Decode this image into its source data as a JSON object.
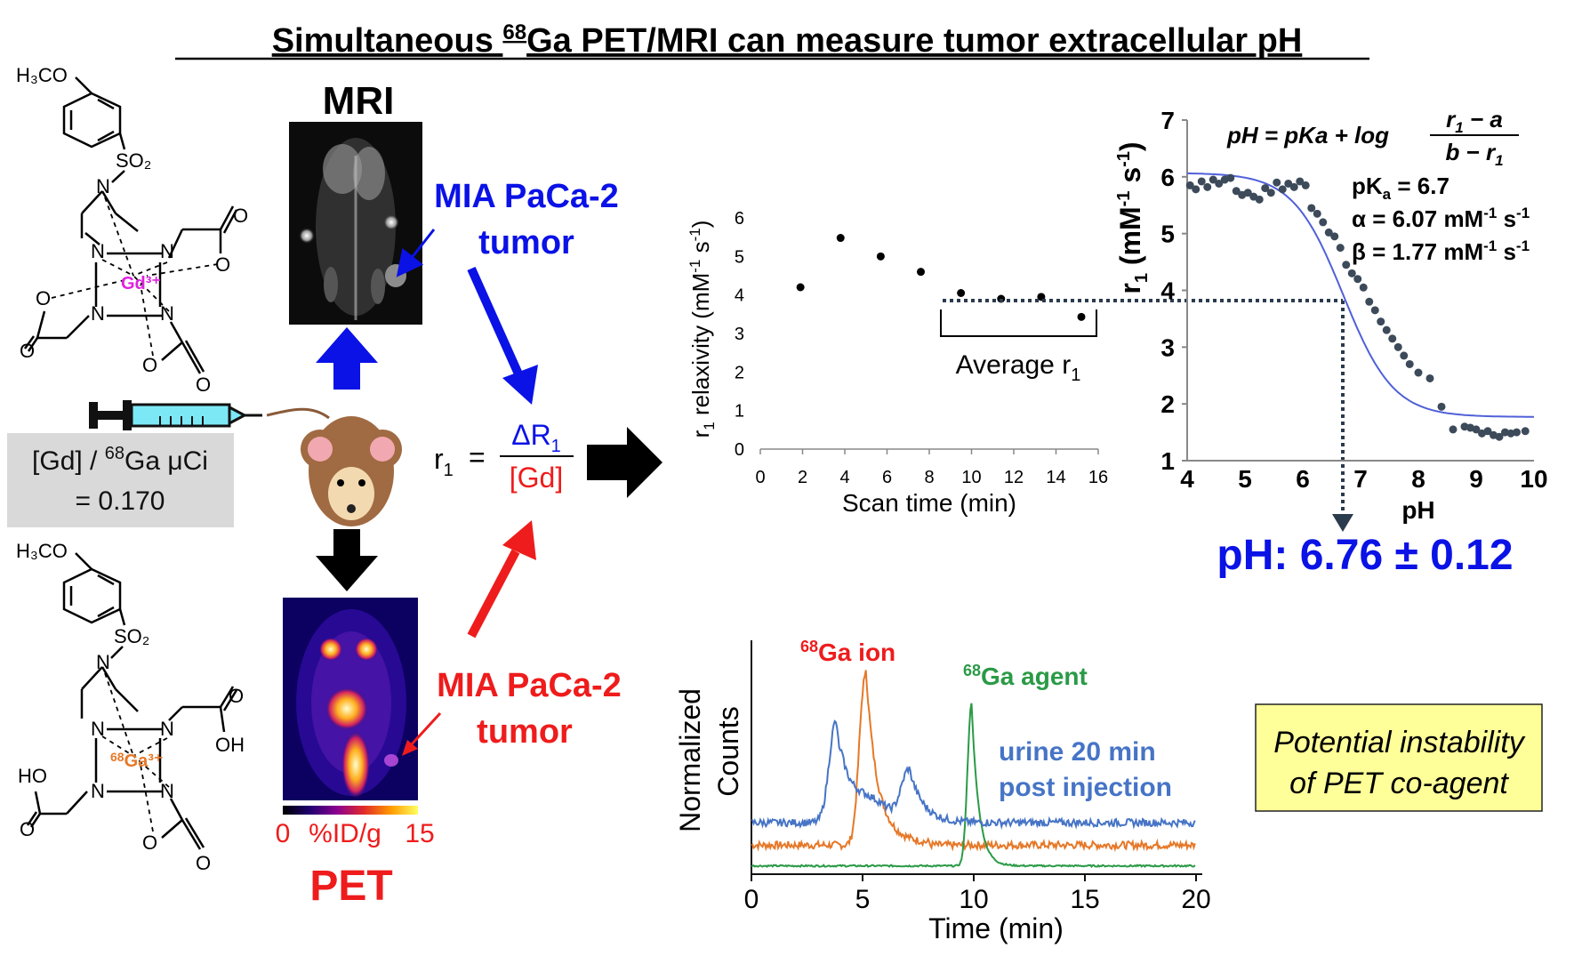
{
  "title": {
    "main": "Simultaneous ",
    "sup": "68",
    "rest": "Ga PET/MRI can measure tumor extracellular pH"
  },
  "colors": {
    "blue": "#0a12e6",
    "red": "#ee1c1c",
    "green": "#2a9a46",
    "orange": "#e67828",
    "steel": "#4674c6",
    "noteBg": "#ffff99",
    "grayBox": "#d9d9d9"
  },
  "molecules": {
    "gd": {
      "h3co": "H₃CO",
      "so2": "SO₂",
      "metal": "Gd³⁺",
      "n": "N",
      "o": "O"
    },
    "ga": {
      "h3co": "H₃CO",
      "so2": "SO₂",
      "metal_sup": "68",
      "metal_main": "Ga³⁺",
      "n": "N",
      "oh": "OH",
      "ho": "HO",
      "o": "O"
    }
  },
  "ratio_box": {
    "line1_a": "[Gd] / ",
    "line1_sup": "68",
    "line1_b": "Ga μCi",
    "line2": "= 0.170"
  },
  "mri": {
    "label": "MRI",
    "tumor_line1": "MIA PaCa-2",
    "tumor_line2": "tumor"
  },
  "pet": {
    "label": "PET",
    "tumor_line1": "MIA PaCa-2",
    "tumor_line2": "tumor",
    "scale_min": "0",
    "scale_unit": "%ID/g",
    "scale_max": "15"
  },
  "equation": {
    "lhs": "r",
    "lhs_sub": "1",
    "eq": "=",
    "num": "ΔR",
    "num_sub": "1",
    "den": "[Gd]"
  },
  "chart_data": [
    {
      "type": "scatter",
      "title": "",
      "xlabel": "Scan time (min)",
      "ylabel": "r1 relaxivity (mM-1 s-1)",
      "ylabel_parts": {
        "a": "r",
        "a_sub": "1",
        "b": " relaxivity (mM",
        "b_sup": "-1",
        "c": " s",
        "c_sup": "-1",
        "d": ")"
      },
      "xlim": [
        0,
        16
      ],
      "ylim": [
        0,
        6
      ],
      "xticks": [
        "0",
        "2",
        "4",
        "6",
        "8",
        "10",
        "12",
        "14",
        "16"
      ],
      "yticks": [
        "0",
        "1",
        "2",
        "3",
        "4",
        "5",
        "6"
      ],
      "x": [
        1.9,
        3.8,
        5.7,
        7.6,
        9.5,
        11.4,
        13.3,
        15.2
      ],
      "y": [
        4.2,
        5.48,
        5.0,
        4.6,
        4.05,
        3.9,
        3.95,
        3.43
      ],
      "annotation": {
        "text": "Average r",
        "sub": "1"
      }
    },
    {
      "type": "scatter",
      "title": "",
      "xlabel": "pH",
      "ylabel": "r1 (mM-1 s-1)",
      "ylabel_parts": {
        "a": "r",
        "a_sub": "1",
        "b": " (mM",
        "b_sup": "-1",
        "c": " s",
        "c_sup": "-1",
        "d": ")"
      },
      "xlim": [
        4,
        10
      ],
      "ylim": [
        1,
        7
      ],
      "xticks": [
        "4",
        "5",
        "6",
        "7",
        "8",
        "9",
        "10"
      ],
      "yticks": [
        "1",
        "2",
        "3",
        "4",
        "5",
        "6",
        "7"
      ],
      "fit": {
        "pKa": 6.7,
        "a": 6.07,
        "b": 1.77
      },
      "x": [
        4.05,
        4.15,
        4.25,
        4.35,
        4.45,
        4.55,
        4.65,
        4.75,
        4.85,
        4.95,
        5.05,
        5.15,
        5.25,
        5.35,
        5.45,
        5.55,
        5.65,
        5.75,
        5.85,
        5.95,
        6.05,
        6.15,
        6.25,
        6.35,
        6.45,
        6.55,
        6.65,
        6.75,
        6.85,
        6.95,
        7.05,
        7.15,
        7.25,
        7.35,
        7.45,
        7.55,
        7.65,
        7.75,
        7.85,
        8.0,
        8.2,
        8.4,
        8.6,
        8.8,
        8.9,
        9.0,
        9.1,
        9.2,
        9.3,
        9.4,
        9.5,
        9.6,
        9.7,
        9.85
      ],
      "y": [
        5.85,
        5.78,
        5.92,
        5.82,
        5.95,
        5.88,
        5.95,
        5.98,
        5.75,
        5.68,
        5.72,
        5.65,
        5.6,
        5.8,
        5.72,
        5.9,
        5.78,
        5.88,
        5.82,
        5.92,
        5.85,
        5.45,
        5.35,
        5.2,
        5.02,
        4.95,
        4.75,
        4.45,
        4.3,
        4.2,
        4.05,
        3.8,
        3.65,
        3.45,
        3.3,
        3.15,
        3.0,
        2.85,
        2.7,
        2.55,
        2.45,
        1.95,
        1.55,
        1.6,
        1.58,
        1.55,
        1.48,
        1.52,
        1.45,
        1.42,
        1.5,
        1.48,
        1.5,
        1.52
      ],
      "formula": {
        "lhs": "pH = pKa + log",
        "num": "r",
        "num_sub": "1",
        "num_rest": " − a",
        "den": "b − r",
        "den_sub": "1"
      },
      "params": [
        {
          "k": "pK",
          "k_sub": "a",
          "v": " = 6.7",
          "u": "",
          "u_sup": "",
          "u2": "",
          "u2_sup": ""
        },
        {
          "k": "α",
          "k_sub": "",
          "v": " = 6.07 mM",
          "u": "",
          "u_sup": "-1",
          "u2": " s",
          "u2_sup": "-1"
        },
        {
          "k": "β",
          "k_sub": "",
          "v": " = 1.77 mM",
          "u": "",
          "u_sup": "-1",
          "u2": " s",
          "u2_sup": "-1"
        }
      ],
      "result": "pH: 6.76 ± 0.12",
      "read_value": {
        "r1": 3.85,
        "pH": 6.76
      }
    },
    {
      "type": "line",
      "title": "",
      "xlabel": "Time (min)",
      "ylabel": "Normalized Counts",
      "ylabel_line1": "Normalized",
      "ylabel_line2": "Counts",
      "xlim": [
        0,
        20
      ],
      "xticks": [
        "0",
        "5",
        "10",
        "15",
        "20"
      ],
      "series": [
        {
          "name": "68Ga ion",
          "label_sup": "68",
          "label_main": "Ga ion",
          "color": "#e67828",
          "baseline": 0.35,
          "peaks": [
            {
              "x": 5.1,
              "h": 2.0,
              "w": 0.25
            }
          ],
          "tail": 0.9
        },
        {
          "name": "68Ga agent",
          "label_sup": "68",
          "label_main": "Ga agent",
          "color": "#2a9a46",
          "baseline": 0.1,
          "peaks": [
            {
              "x": 9.9,
              "h": 1.95,
              "w": 0.18
            }
          ],
          "tail": 0.0
        },
        {
          "name": "urine 20 min post injection",
          "label_line1": "urine 20 min",
          "label_line2": "post injection",
          "color": "#4674c6",
          "baseline": 0.62,
          "peaks": [
            {
              "x": 3.8,
              "h": 1.22,
              "w": 0.3
            },
            {
              "x": 7.1,
              "h": 0.62,
              "w": 0.35
            }
          ],
          "tail": 0.45
        }
      ]
    }
  ],
  "note": {
    "line1": "Potential instability",
    "line2": "of PET co-agent"
  }
}
